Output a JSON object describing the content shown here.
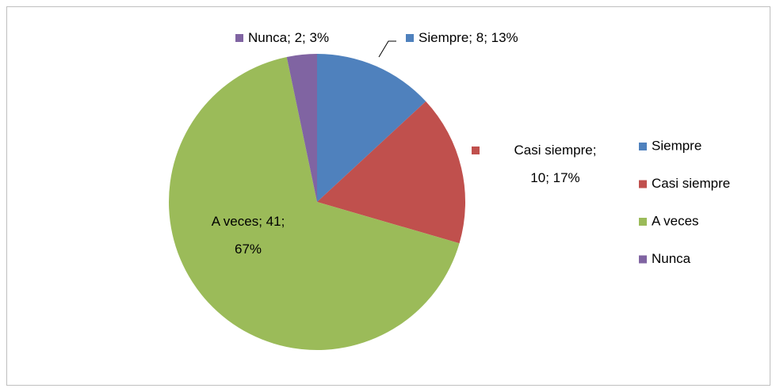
{
  "chart_data": {
    "type": "pie",
    "categories": [
      "Siempre",
      "Casi siempre",
      "A veces",
      "Nunca"
    ],
    "values": [
      8,
      10,
      41,
      2
    ],
    "value_labels": [
      "Siempre; 8; 13%",
      "Casi siempre; 10; 17%",
      "A veces; 41; 67%",
      "Nunca; 2; 3%"
    ],
    "colors": [
      "#4f81bd",
      "#c0504d",
      "#9bbb59",
      "#8064a2"
    ],
    "legend": "right"
  }
}
